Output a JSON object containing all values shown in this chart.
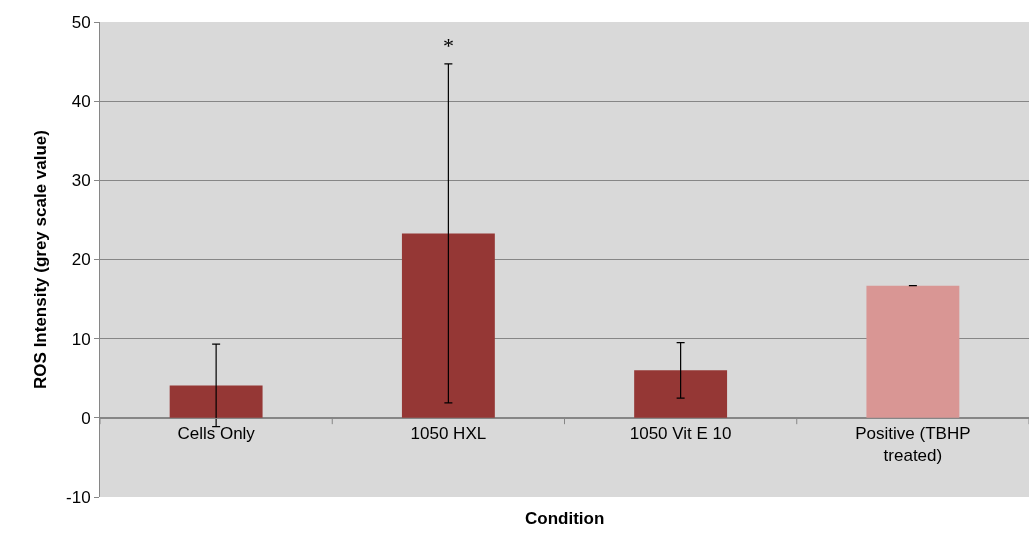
{
  "chart_data": {
    "type": "bar",
    "xlabel": "Condition",
    "ylabel": "ROS Intensity (grey scale value)",
    "categories": [
      "Cells Only",
      "1050 HXL",
      "1050 Vit E 10",
      "Positive (TBHP\ntreated)"
    ],
    "values": [
      4.1,
      23.3,
      6.0,
      16.7
    ],
    "colors": [
      "#953735",
      "#953735",
      "#953735",
      "#d99694"
    ],
    "errors": [
      5.2,
      21.4,
      3.5,
      null
    ],
    "annotations": [
      "*"
    ],
    "ylim": [
      -10,
      50
    ],
    "yticks": [
      -10,
      0,
      10,
      20,
      30,
      40,
      50
    ],
    "grid": "y",
    "legend": false
  }
}
